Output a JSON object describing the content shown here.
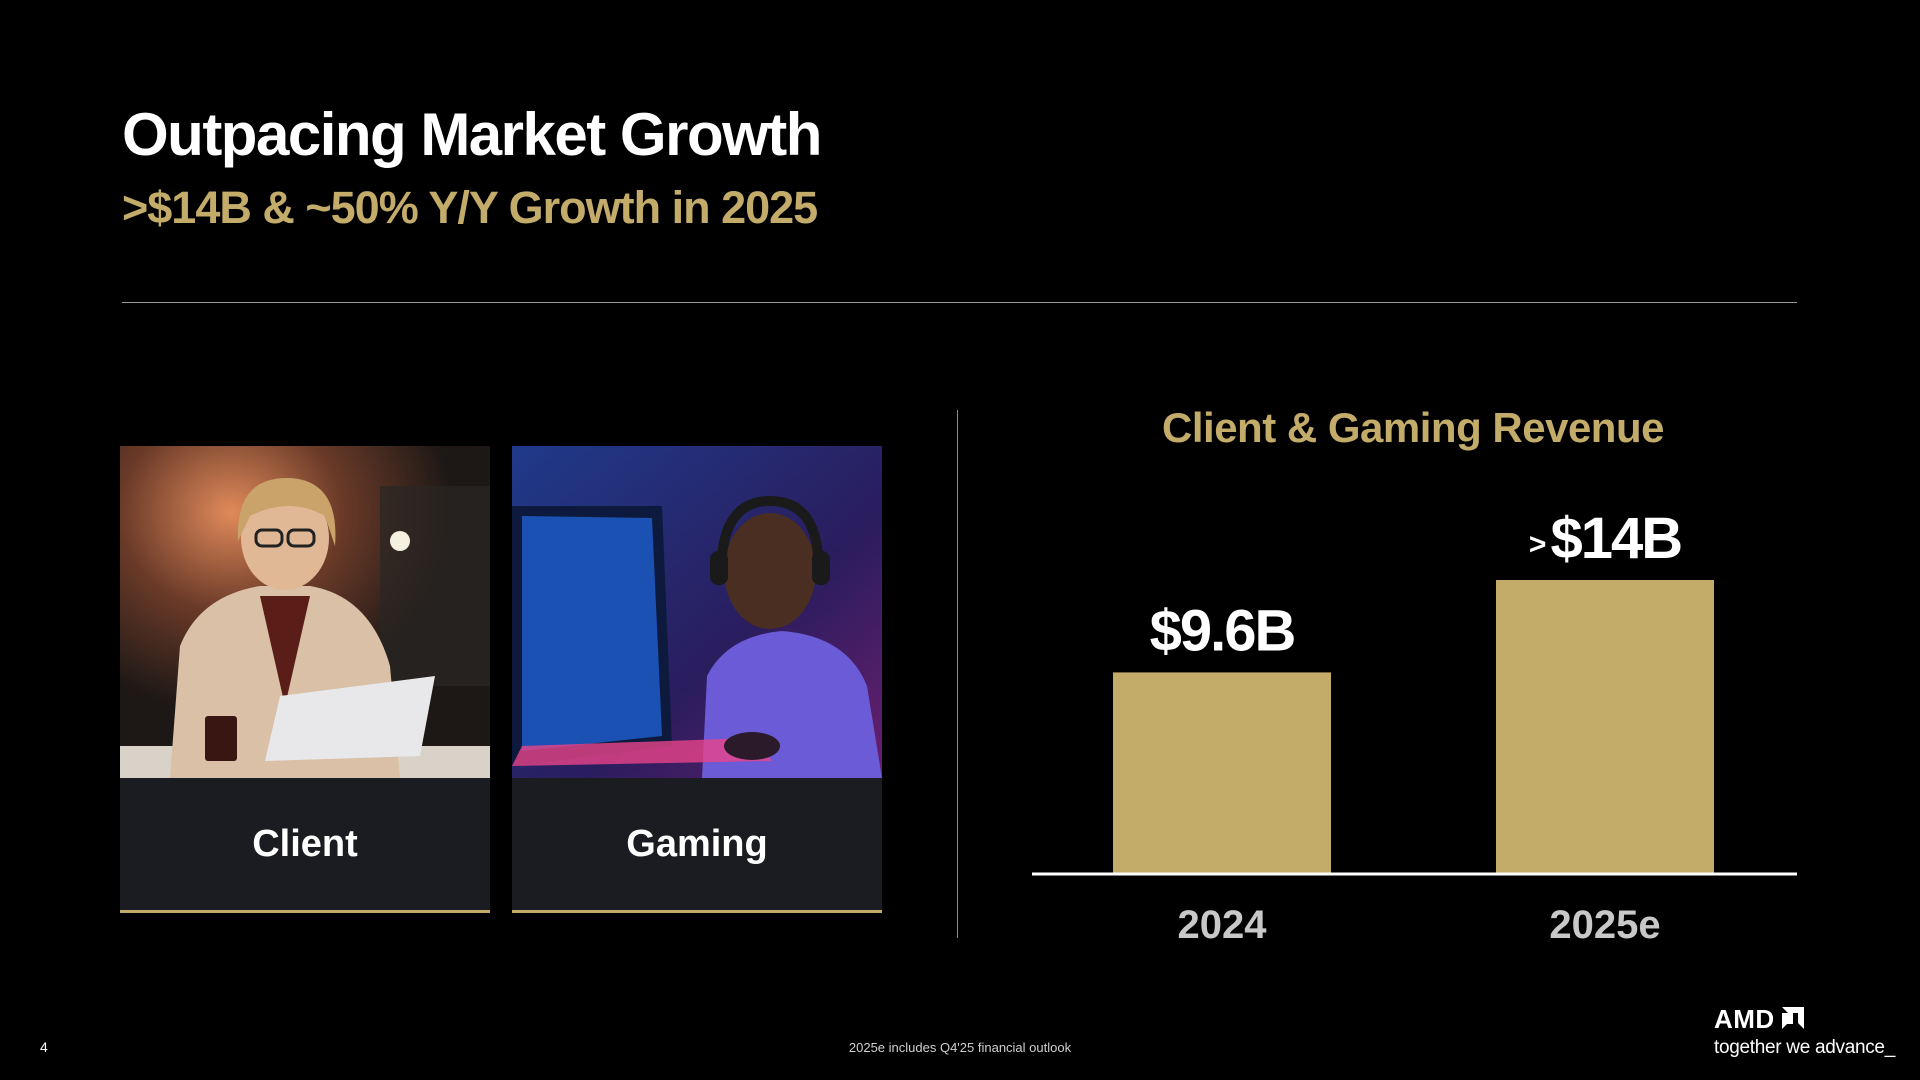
{
  "slide": {
    "title": "Outpacing Market Growth",
    "subtitle": ">$14B & ~50% Y/Y Growth in 2025",
    "page_number": "4",
    "footnote": "2025e includes Q4'25 financial outlook"
  },
  "cards": [
    {
      "label": "Client",
      "image": "woman-with-laptop-photo"
    },
    {
      "label": "Gaming",
      "image": "gamer-with-headset-photo"
    }
  ],
  "chart_data": {
    "type": "bar",
    "title": "Client & Gaming Revenue",
    "categories": [
      "2024",
      "2025e"
    ],
    "values": [
      9.6,
      14
    ],
    "data_labels": [
      {
        "prefix": "",
        "text": "$9.6B"
      },
      {
        "prefix": ">",
        "text": "$14B"
      }
    ],
    "xlabel": "",
    "ylabel": "",
    "grid": false,
    "colors": {
      "bar": "#c3ab6a",
      "axis": "#ffffff"
    }
  },
  "brand": {
    "logo": "AMD",
    "tagline": "together we advance_",
    "accent": "#c3ab6a"
  }
}
